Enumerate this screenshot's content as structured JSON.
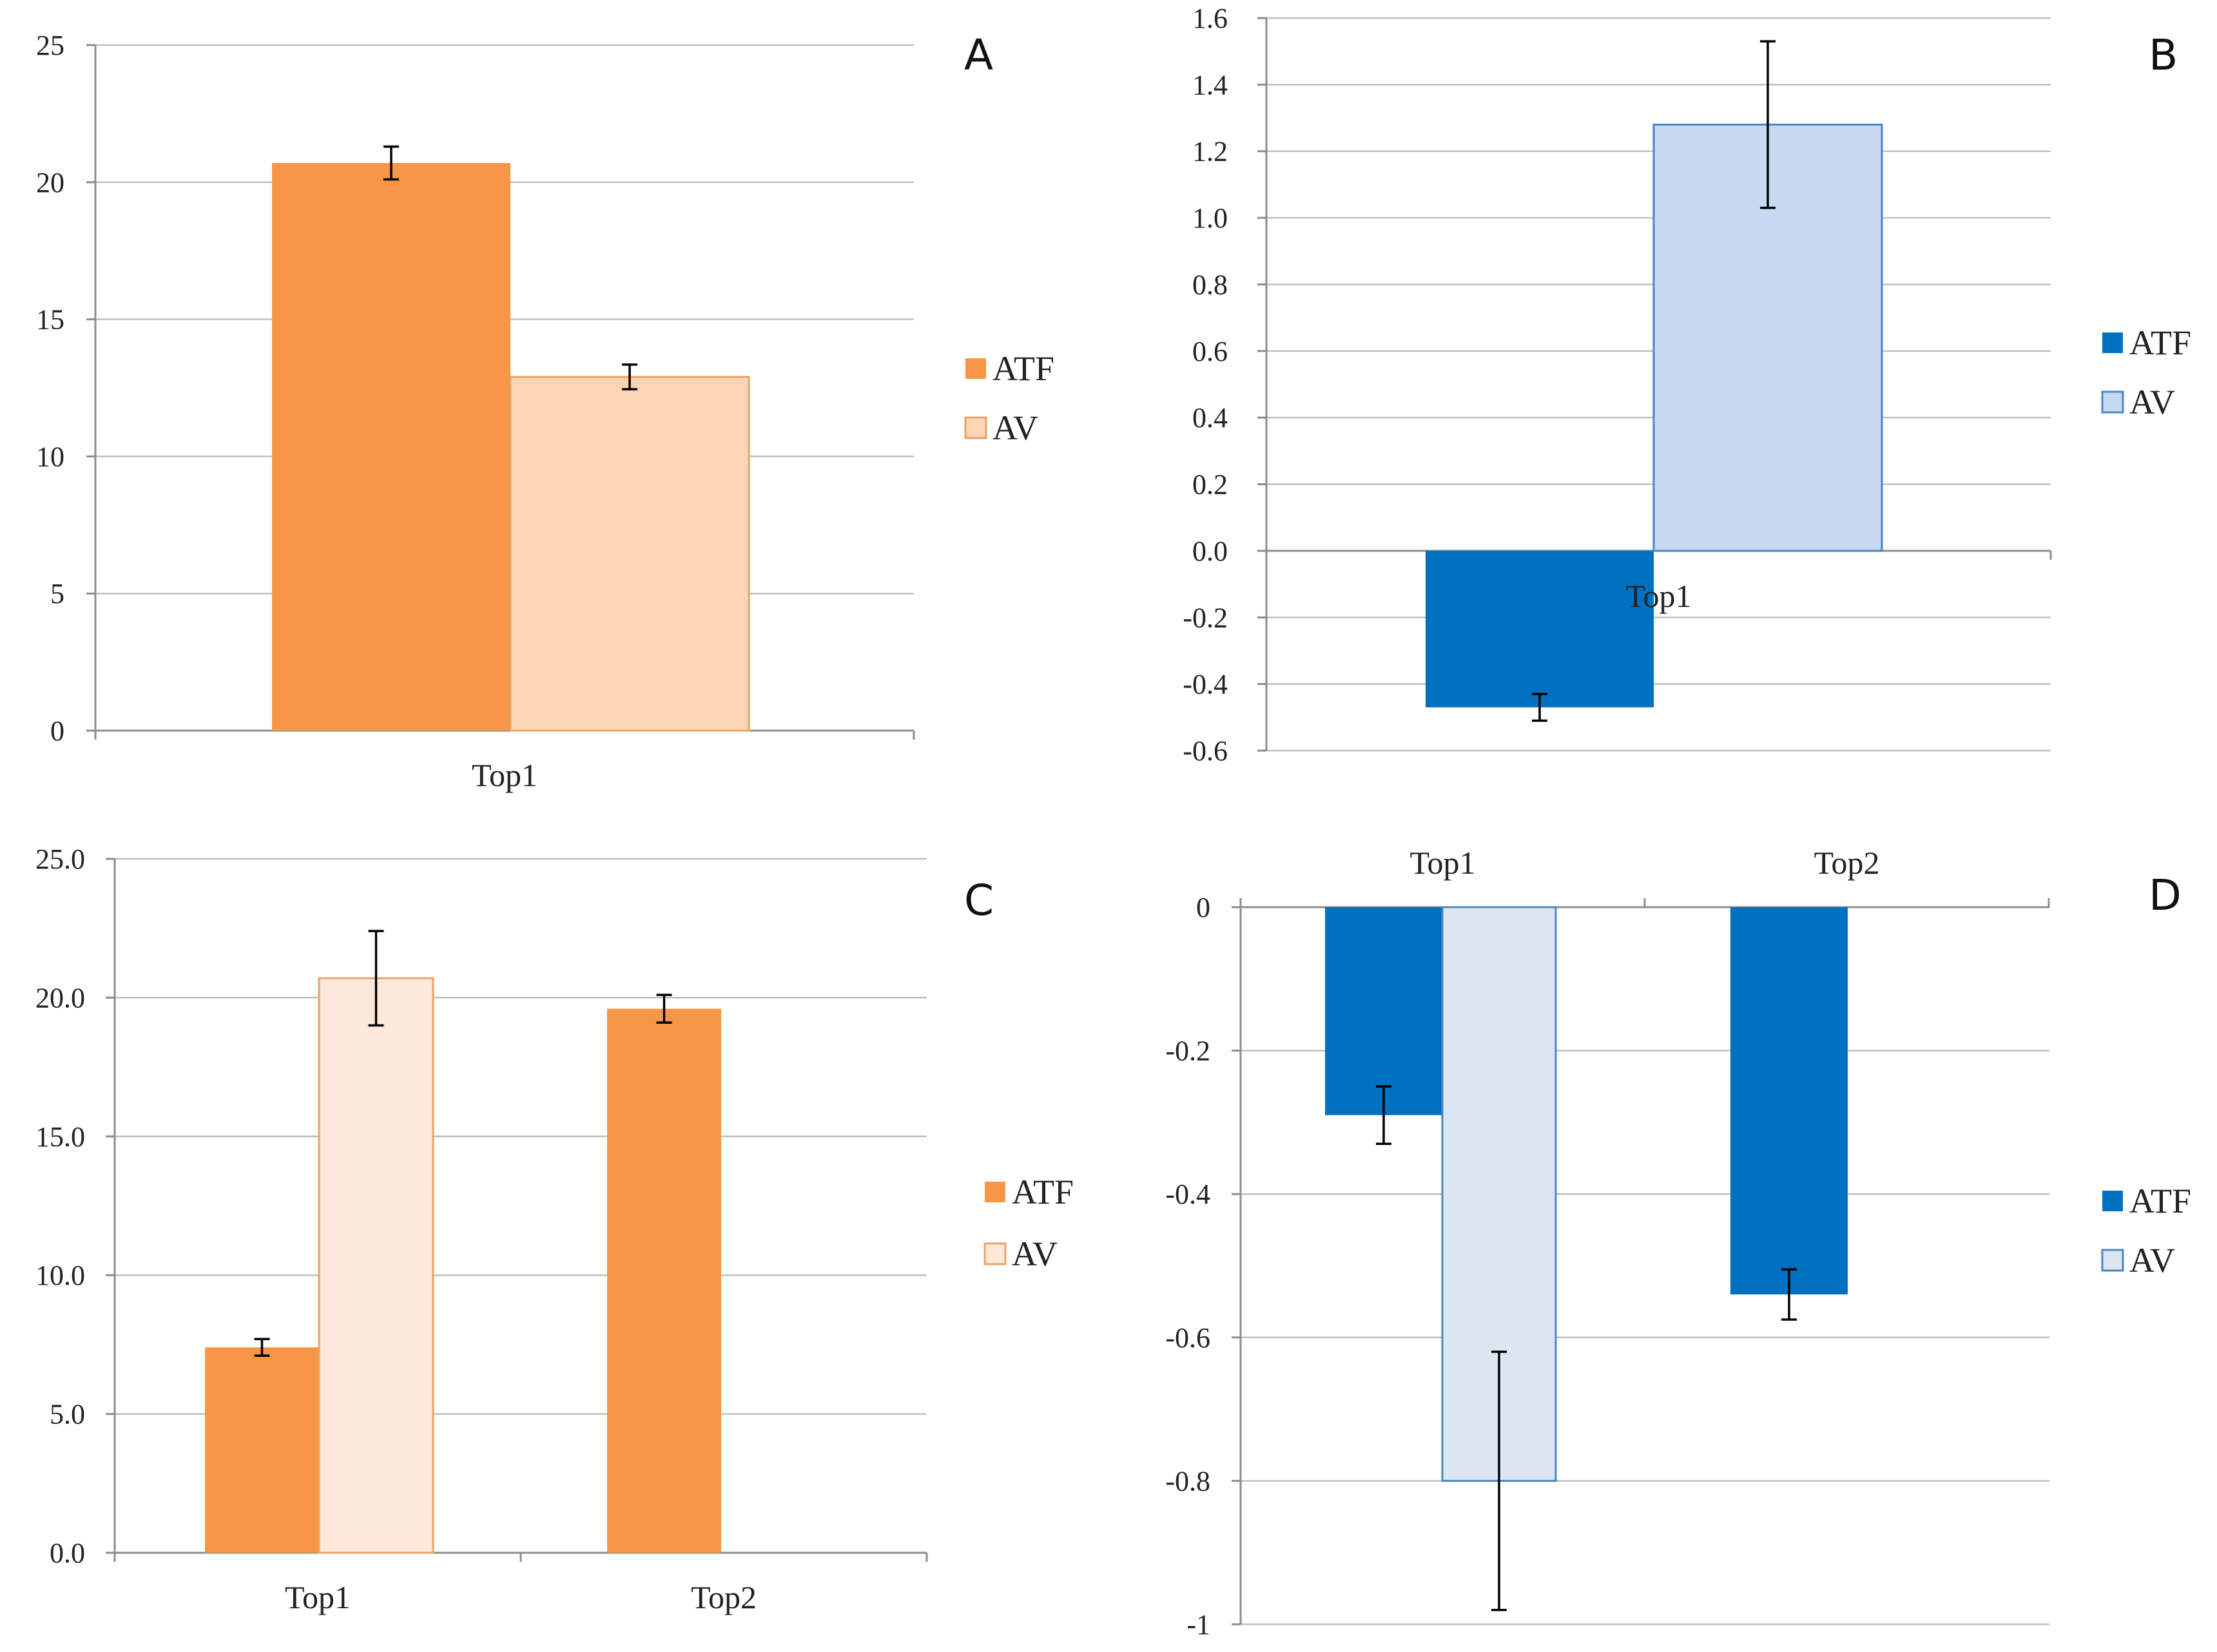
{
  "colors": {
    "orange_dark": "#F79646",
    "orange_light_a": "#FBD5B5",
    "orange_light_c": "#FDE9D9",
    "orange_edge": "#E9A466",
    "blue_dark": "#0070C0",
    "blue_light_b": "#C6D9F1",
    "blue_light_d": "#DCE6F2",
    "blue_edge": "#4A86C6"
  },
  "chart_data": [
    {
      "panel": "A",
      "type": "bar",
      "categories": [
        "Top1"
      ],
      "series": [
        {
          "name": "ATF",
          "values": [
            20.7
          ],
          "errors": [
            0.6
          ]
        },
        {
          "name": "AV",
          "values": [
            12.9
          ],
          "errors": [
            0.45
          ]
        }
      ],
      "ylim": [
        0,
        25
      ],
      "yticks": [
        "0",
        "5",
        "10",
        "15",
        "20",
        "25"
      ],
      "ytick_values": [
        0,
        5,
        10,
        15,
        20,
        25
      ],
      "legend": [
        "ATF",
        "AV"
      ],
      "legend_position": "right",
      "grid": true
    },
    {
      "panel": "B",
      "type": "bar",
      "categories": [
        "Top1"
      ],
      "series": [
        {
          "name": "ATF",
          "values": [
            -0.47
          ],
          "errors": [
            0.04
          ]
        },
        {
          "name": "AV",
          "values": [
            1.28
          ],
          "errors": [
            0.25
          ]
        }
      ],
      "ylim": [
        -0.6,
        1.6
      ],
      "yticks": [
        "-0.6",
        "-0.4",
        "-0.2",
        "0.0",
        "0.2",
        "0.4",
        "0.6",
        "0.8",
        "1.0",
        "1.2",
        "1.4",
        "1.6"
      ],
      "ytick_values": [
        -0.6,
        -0.4,
        -0.2,
        0.0,
        0.2,
        0.4,
        0.6,
        0.8,
        1.0,
        1.2,
        1.4,
        1.6
      ],
      "legend": [
        "ATF",
        "AV"
      ],
      "legend_position": "right",
      "grid": true
    },
    {
      "panel": "C",
      "type": "bar",
      "categories": [
        "Top1",
        "Top2"
      ],
      "series": [
        {
          "name": "ATF",
          "values": [
            7.4,
            19.6
          ],
          "errors": [
            0.3,
            0.5
          ]
        },
        {
          "name": "AV",
          "values": [
            20.7,
            null
          ],
          "errors": [
            1.7,
            null
          ]
        }
      ],
      "ylim": [
        0,
        25
      ],
      "yticks": [
        "0.0",
        "5.0",
        "10.0",
        "15.0",
        "20.0",
        "25.0"
      ],
      "ytick_values": [
        0,
        5,
        10,
        15,
        20,
        25
      ],
      "legend": [
        "ATF",
        "AV"
      ],
      "legend_position": "right",
      "grid": true
    },
    {
      "panel": "D",
      "type": "bar",
      "categories": [
        "Top1",
        "Top2"
      ],
      "series": [
        {
          "name": "ATF",
          "values": [
            -0.29,
            -0.54
          ],
          "errors": [
            0.04,
            0.035
          ]
        },
        {
          "name": "AV",
          "values": [
            -0.8,
            null
          ],
          "errors": [
            0.18,
            null
          ]
        }
      ],
      "ylim": [
        -1,
        0
      ],
      "yticks": [
        "-1",
        "-0.8",
        "-0.6",
        "-0.4",
        "-0.2",
        "0"
      ],
      "ytick_values": [
        -1,
        -0.8,
        -0.6,
        -0.4,
        -0.2,
        0
      ],
      "legend": [
        "ATF",
        "AV"
      ],
      "legend_position": "right",
      "grid": true
    }
  ]
}
